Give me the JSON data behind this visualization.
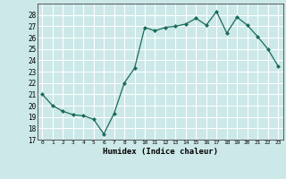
{
  "x": [
    0,
    1,
    2,
    3,
    4,
    5,
    6,
    7,
    8,
    9,
    10,
    11,
    12,
    13,
    14,
    15,
    16,
    17,
    18,
    19,
    20,
    21,
    22,
    23
  ],
  "y": [
    21,
    20,
    19.5,
    19.2,
    19.1,
    18.8,
    17.5,
    19.3,
    22,
    23.3,
    26.9,
    26.6,
    26.9,
    27.0,
    27.2,
    27.7,
    27.1,
    28.3,
    26.4,
    27.8,
    27.1,
    26.1,
    25.0,
    23.5
  ],
  "line_color": "#1a6b5a",
  "marker": "D",
  "marker_size": 2.0,
  "background_color": "#cce8e8",
  "grid_color": "#ffffff",
  "xlabel": "Humidex (Indice chaleur)",
  "ylim": [
    17,
    29
  ],
  "xlim": [
    -0.5,
    23.5
  ],
  "yticks": [
    17,
    18,
    19,
    20,
    21,
    22,
    23,
    24,
    25,
    26,
    27,
    28
  ],
  "xticks": [
    0,
    1,
    2,
    3,
    4,
    5,
    6,
    7,
    8,
    9,
    10,
    11,
    12,
    13,
    14,
    15,
    16,
    17,
    18,
    19,
    20,
    21,
    22,
    23
  ]
}
